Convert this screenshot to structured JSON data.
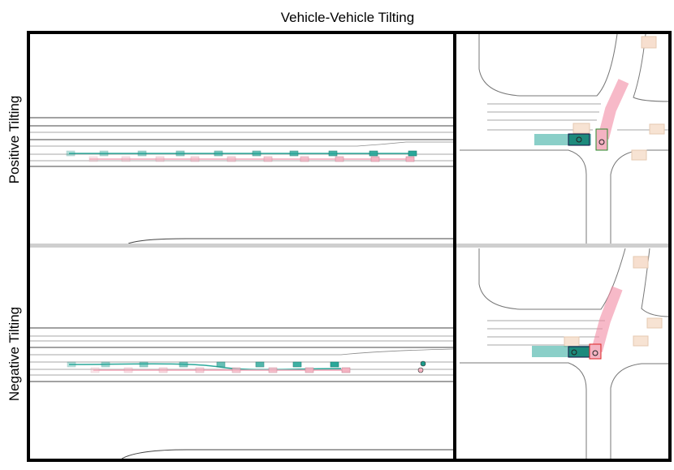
{
  "title": "Vehicle-Vehicle Tilting",
  "rows": [
    {
      "label": "Positive Tilting"
    },
    {
      "label": "Negative Tilting"
    }
  ]
}
